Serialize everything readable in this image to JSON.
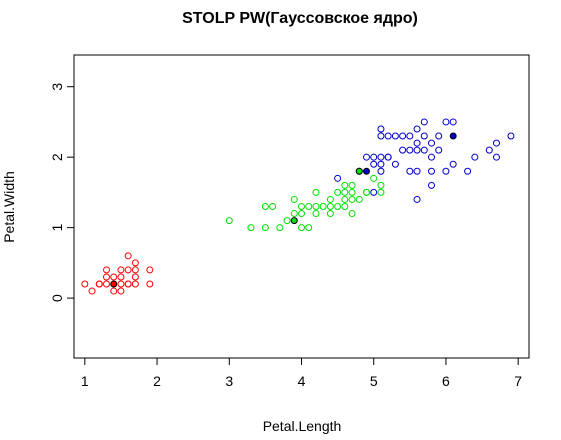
{
  "chart_data": {
    "type": "scatter",
    "title": "STOLP PW(Гауссовское ядро)",
    "xlabel": "Petal.Length",
    "ylabel": "Petal.Width",
    "xlim": [
      0.85,
      7.15
    ],
    "ylim": [
      -0.85,
      3.45
    ],
    "xticks": [
      1,
      2,
      3,
      4,
      5,
      6,
      7
    ],
    "yticks": [
      0,
      1,
      2,
      3
    ],
    "grid": false,
    "legend": "none",
    "series": [
      {
        "color": "#ff0000",
        "marker": "open-circle",
        "points": [
          [
            1.0,
            0.2
          ],
          [
            1.1,
            0.1
          ],
          [
            1.2,
            0.2
          ],
          [
            1.3,
            0.2
          ],
          [
            1.3,
            0.3
          ],
          [
            1.3,
            0.4
          ],
          [
            1.4,
            0.1
          ],
          [
            1.4,
            0.3
          ],
          [
            1.5,
            0.1
          ],
          [
            1.5,
            0.2
          ],
          [
            1.5,
            0.3
          ],
          [
            1.5,
            0.4
          ],
          [
            1.6,
            0.2
          ],
          [
            1.6,
            0.4
          ],
          [
            1.6,
            0.6
          ],
          [
            1.7,
            0.2
          ],
          [
            1.7,
            0.3
          ],
          [
            1.7,
            0.4
          ],
          [
            1.7,
            0.5
          ],
          [
            1.9,
            0.2
          ],
          [
            1.9,
            0.4
          ],
          [
            1.2,
            0.2
          ],
          [
            1.6,
            0.2
          ]
        ]
      },
      {
        "color": "#00e000",
        "marker": "open-circle",
        "points": [
          [
            3.0,
            1.1
          ],
          [
            3.3,
            1.0
          ],
          [
            3.5,
            1.0
          ],
          [
            3.5,
            1.3
          ],
          [
            3.6,
            1.3
          ],
          [
            3.7,
            1.0
          ],
          [
            3.8,
            1.1
          ],
          [
            3.9,
            1.2
          ],
          [
            3.9,
            1.4
          ],
          [
            4.0,
            1.0
          ],
          [
            4.0,
            1.2
          ],
          [
            4.0,
            1.3
          ],
          [
            4.1,
            1.0
          ],
          [
            4.1,
            1.3
          ],
          [
            4.2,
            1.2
          ],
          [
            4.2,
            1.3
          ],
          [
            4.2,
            1.5
          ],
          [
            4.3,
            1.3
          ],
          [
            4.4,
            1.2
          ],
          [
            4.4,
            1.3
          ],
          [
            4.4,
            1.4
          ],
          [
            4.5,
            1.3
          ],
          [
            4.5,
            1.5
          ],
          [
            4.6,
            1.3
          ],
          [
            4.6,
            1.4
          ],
          [
            4.6,
            1.5
          ],
          [
            4.6,
            1.6
          ],
          [
            4.7,
            1.2
          ],
          [
            4.7,
            1.4
          ],
          [
            4.7,
            1.5
          ],
          [
            4.7,
            1.6
          ],
          [
            4.8,
            1.4
          ],
          [
            4.9,
            1.5
          ],
          [
            5.0,
            1.7
          ],
          [
            5.1,
            1.6
          ],
          [
            5.1,
            1.5
          ],
          [
            4.9,
            1.5
          ]
        ]
      },
      {
        "color": "#0000cc",
        "marker": "open-circle",
        "points": [
          [
            4.5,
            1.7
          ],
          [
            4.8,
            1.8
          ],
          [
            4.9,
            2.0
          ],
          [
            5.0,
            1.5
          ],
          [
            5.0,
            1.9
          ],
          [
            5.0,
            2.0
          ],
          [
            5.1,
            1.8
          ],
          [
            5.1,
            1.9
          ],
          [
            5.1,
            2.0
          ],
          [
            5.1,
            2.3
          ],
          [
            5.1,
            2.4
          ],
          [
            5.2,
            2.0
          ],
          [
            5.2,
            2.3
          ],
          [
            5.3,
            1.9
          ],
          [
            5.3,
            2.3
          ],
          [
            5.4,
            2.1
          ],
          [
            5.4,
            2.3
          ],
          [
            5.5,
            1.8
          ],
          [
            5.5,
            2.1
          ],
          [
            5.6,
            1.4
          ],
          [
            5.6,
            1.8
          ],
          [
            5.6,
            2.1
          ],
          [
            5.6,
            2.2
          ],
          [
            5.6,
            2.4
          ],
          [
            5.7,
            2.1
          ],
          [
            5.7,
            2.3
          ],
          [
            5.7,
            2.5
          ],
          [
            5.8,
            1.6
          ],
          [
            5.8,
            1.8
          ],
          [
            5.8,
            2.2
          ],
          [
            5.9,
            2.1
          ],
          [
            5.9,
            2.3
          ],
          [
            6.0,
            1.8
          ],
          [
            6.0,
            2.5
          ],
          [
            6.1,
            1.9
          ],
          [
            6.1,
            2.5
          ],
          [
            6.3,
            1.8
          ],
          [
            6.4,
            2.0
          ],
          [
            6.6,
            2.1
          ],
          [
            6.7,
            2.0
          ],
          [
            6.7,
            2.2
          ],
          [
            6.9,
            2.3
          ],
          [
            5.2,
            2.0
          ],
          [
            5.8,
            2.0
          ],
          [
            5.5,
            2.3
          ]
        ]
      }
    ],
    "highlighted": [
      {
        "x": 1.4,
        "y": 0.2,
        "color": "#ff0000"
      },
      {
        "x": 3.9,
        "y": 1.1,
        "color": "#00e000"
      },
      {
        "x": 4.8,
        "y": 1.8,
        "color": "#00e000"
      },
      {
        "x": 4.9,
        "y": 1.8,
        "color": "#0000cc"
      },
      {
        "x": 6.1,
        "y": 2.3,
        "color": "#0000cc"
      }
    ]
  }
}
